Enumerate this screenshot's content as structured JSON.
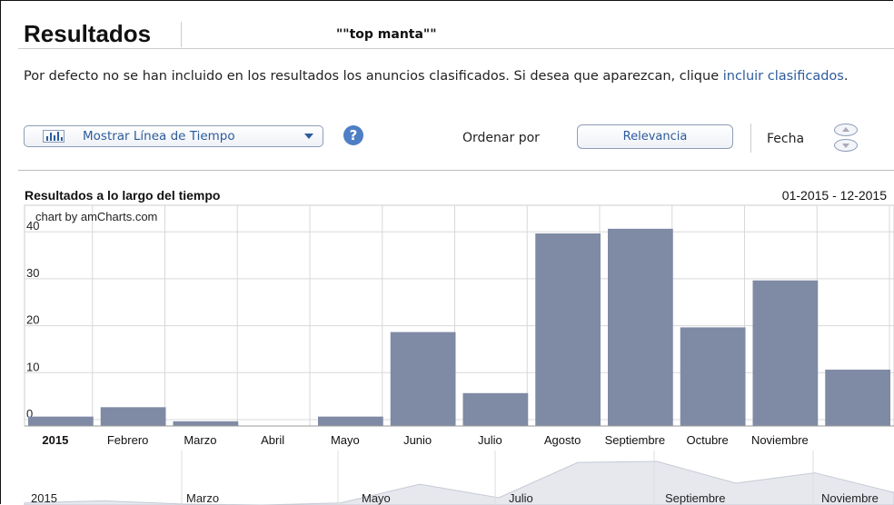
{
  "header": {
    "title": "Resultados",
    "query": "\"\"top manta\"\""
  },
  "notice": {
    "text_before": "Por defecto no se han incluido en los resultados los anuncios clasificados. Si desea que aparezcan, clique ",
    "link": "incluir clasificados",
    "text_after": "."
  },
  "toolbar": {
    "timeline_label": "Mostrar Línea de Tiempo",
    "help_label": "?",
    "sort_label": "Ordenar por",
    "sort_value": "Relevancia",
    "date_label": "Fecha"
  },
  "chart_section": {
    "title": "Resultados a lo largo del tiempo",
    "range": "01-2015 - 12-2015",
    "credit": "chart by amCharts.com"
  },
  "colors": {
    "bar": "#7f8aa5",
    "grid": "#d8d8d8",
    "accent": "#2d5b9b"
  },
  "chart_data": {
    "type": "bar",
    "categories": [
      "2015",
      "Febrero",
      "Marzo",
      "Abril",
      "Mayo",
      "Junio",
      "Julio",
      "Agosto",
      "Septiembre",
      "Octubre",
      "Noviembre",
      ""
    ],
    "values": [
      2,
      4,
      1,
      0,
      2,
      20,
      7,
      41,
      42,
      21,
      31,
      12
    ],
    "yticks": [
      "0",
      "10",
      "20",
      "30",
      "40"
    ],
    "ylim": [
      0,
      47
    ],
    "grid": true,
    "xlabel": "",
    "ylabel": ""
  },
  "navigator": {
    "labels": [
      "2015",
      "Marzo",
      "Mayo",
      "Julio",
      "Septiembre",
      "Noviembre"
    ]
  }
}
